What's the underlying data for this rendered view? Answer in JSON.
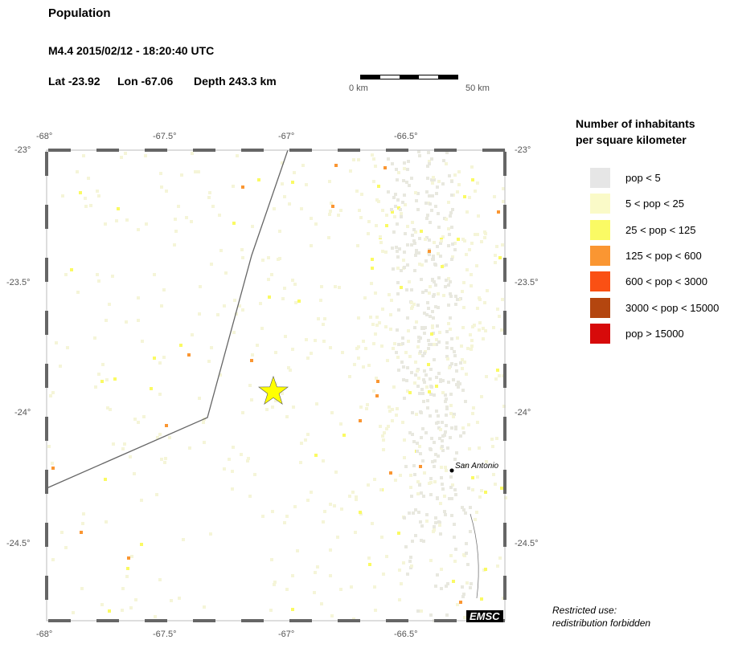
{
  "header": {
    "title": "Population",
    "event": "M4.4  2015/02/12 - 18:20:40 UTC",
    "lat": "Lat -23.92",
    "lon": "Lon -67.06",
    "depth": "Depth 243.3 km"
  },
  "scale_bar": {
    "start_label": "0 km",
    "end_label": "50 km"
  },
  "map": {
    "lon_ticks": [
      "-68°",
      "-67.5°",
      "-67°",
      "-66.5°"
    ],
    "lat_ticks": [
      "-23°",
      "-23.5°",
      "-24°",
      "-24.5°"
    ],
    "lon_range": [
      -68,
      -66.1
    ],
    "lat_range": [
      -23,
      -24.8
    ],
    "epicenter": {
      "lat": -23.92,
      "lon": -67.06,
      "symbol": "star-icon",
      "color": "#ffff00"
    },
    "place": {
      "name": "San Antonio",
      "lat": -24.22,
      "lon": -66.32
    },
    "logo": "EMSC"
  },
  "legend": {
    "title_line1": "Number of inhabitants",
    "title_line2": "per square kilometer",
    "items": [
      {
        "label": "pop < 5",
        "color": "#e6e6e6"
      },
      {
        "label": "5 < pop < 25",
        "color": "#fafac8"
      },
      {
        "label": "25 < pop < 125",
        "color": "#fafa64"
      },
      {
        "label": "125 < pop < 600",
        "color": "#fa9632"
      },
      {
        "label": "600 < pop < 3000",
        "color": "#fa5014"
      },
      {
        "label": "3000 < pop < 15000",
        "color": "#b4460f"
      },
      {
        "label": "pop > 15000",
        "color": "#d70a0a"
      }
    ]
  },
  "footer": {
    "line1": "Restricted use:",
    "line2": "redistribution forbidden"
  }
}
